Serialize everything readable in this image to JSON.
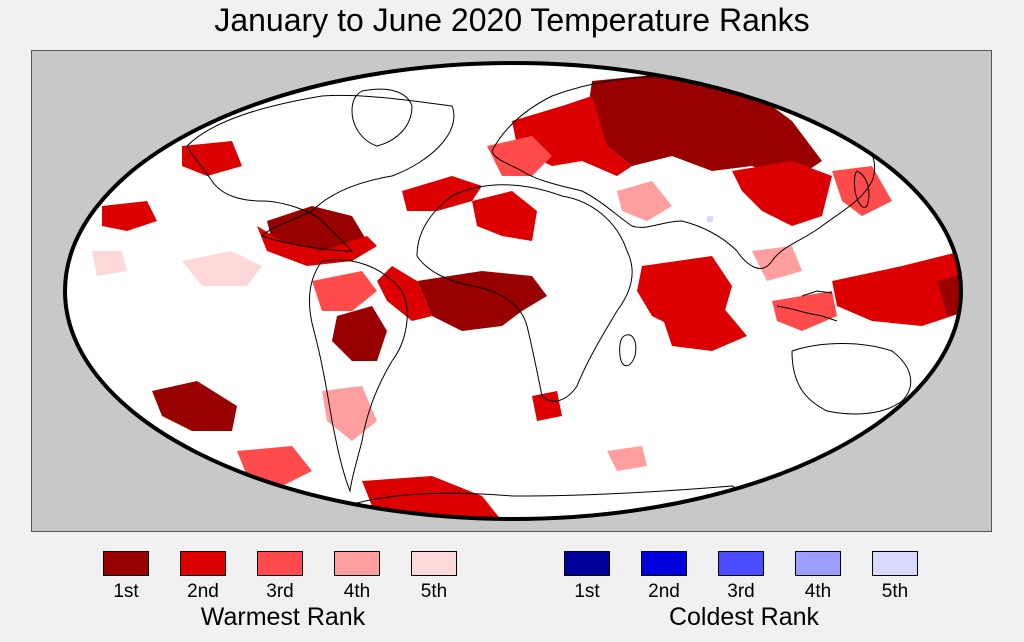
{
  "title": "January to June 2020 Temperature Ranks",
  "legend": {
    "warm": {
      "title": "Warmest Rank",
      "items": [
        {
          "label": "1st",
          "color": "#990000"
        },
        {
          "label": "2nd",
          "color": "#dd0000"
        },
        {
          "label": "3rd",
          "color": "#ff4b4b"
        },
        {
          "label": "4th",
          "color": "#ff9e9e"
        },
        {
          "label": "5th",
          "color": "#ffd9d9"
        }
      ]
    },
    "cold": {
      "title": "Coldest Rank",
      "items": [
        {
          "label": "1st",
          "color": "#00009a"
        },
        {
          "label": "2nd",
          "color": "#0000dd"
        },
        {
          "label": "3rd",
          "color": "#4b4bff"
        },
        {
          "label": "4th",
          "color": "#9e9eff"
        },
        {
          "label": "5th",
          "color": "#d9d9ff"
        }
      ]
    }
  },
  "map": {
    "projection": "mollweide",
    "background_color": "#c8c8c8",
    "ocean_land_base_color": "#ffffff"
  }
}
